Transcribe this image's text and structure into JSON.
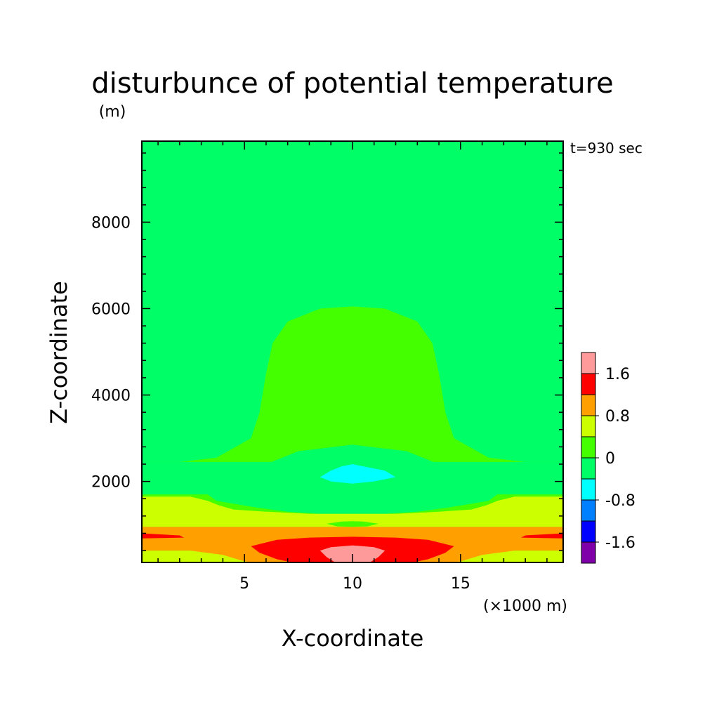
{
  "chart_data": {
    "type": "heatmap",
    "title": "disturbunce of potential temperature",
    "units_label": "(m)",
    "time_label": "t=930 sec",
    "xlabel": "X-coordinate",
    "x_unit_label": "(×1000 m)",
    "ylabel": "Z-coordinate",
    "xlim": [
      0.25,
      19.75
    ],
    "ylim": [
      125,
      9875
    ],
    "x_ticks": [
      5,
      10,
      15
    ],
    "x_tick_labels": [
      "5",
      "10",
      "15"
    ],
    "y_ticks": [
      2000,
      4000,
      6000,
      8000
    ],
    "y_tick_labels": [
      "2000",
      "4000",
      "6000",
      "8000"
    ],
    "colorbar": {
      "levels": [
        -2.0,
        -1.6,
        -1.2,
        -0.8,
        -0.4,
        0,
        0.4,
        0.8,
        1.2,
        1.6,
        2.0
      ],
      "colors": [
        "#7f00a8",
        "#0000ff",
        "#0080ff",
        "#00ffff",
        "#00ff66",
        "#44ff00",
        "#ccff00",
        "#ffa000",
        "#ff0000",
        "#ff9a9a"
      ],
      "tick_labels": [
        "-1.6",
        "-0.8",
        "0",
        "0.8",
        "1.6"
      ],
      "tick_values": [
        -1.6,
        -0.8,
        0,
        0.8,
        1.6
      ]
    },
    "regions": [
      {
        "level": "0 to 0.4",
        "color": "#44ff00",
        "polygon": [
          [
            0.25,
            2450
          ],
          [
            2.0,
            2450
          ],
          [
            3.7,
            2550
          ],
          [
            5.3,
            3000
          ],
          [
            5.7,
            3600
          ],
          [
            6.0,
            4500
          ],
          [
            6.3,
            5200
          ],
          [
            7.0,
            5700
          ],
          [
            8.5,
            6000
          ],
          [
            10,
            6050
          ],
          [
            11.5,
            6000
          ],
          [
            13,
            5700
          ],
          [
            13.7,
            5200
          ],
          [
            14,
            4500
          ],
          [
            14.3,
            3600
          ],
          [
            14.7,
            3000
          ],
          [
            16.3,
            2550
          ],
          [
            18,
            2450
          ],
          [
            19.75,
            2450
          ],
          [
            19.75,
            125
          ],
          [
            0.25,
            125
          ]
        ]
      },
      {
        "level": "-0.4 to 0",
        "color": "#00ff66",
        "polygon": [
          [
            0.25,
            2450
          ],
          [
            19.75,
            2450
          ],
          [
            19.75,
            1700
          ],
          [
            16.7,
            1700
          ],
          [
            16.3,
            1550
          ],
          [
            14.5,
            1400
          ],
          [
            13,
            1300
          ],
          [
            11.5,
            1250
          ],
          [
            10,
            1250
          ],
          [
            8.5,
            1250
          ],
          [
            7,
            1300
          ],
          [
            5.5,
            1400
          ],
          [
            3.7,
            1550
          ],
          [
            3.3,
            1700
          ],
          [
            0.25,
            1700
          ]
        ]
      },
      {
        "level": "-0.4 to 0",
        "color": "#00ff66",
        "polygon": [
          [
            5.7,
            2050
          ],
          [
            5.8,
            1750
          ],
          [
            6.7,
            1650
          ],
          [
            8.5,
            1550
          ],
          [
            10,
            1500
          ],
          [
            11.5,
            1550
          ],
          [
            13.3,
            1650
          ],
          [
            14.2,
            1750
          ],
          [
            14.3,
            2050
          ],
          [
            14.5,
            2300
          ],
          [
            12.5,
            2700
          ],
          [
            10,
            2850
          ],
          [
            7.5,
            2700
          ],
          [
            5.5,
            2300
          ]
        ]
      },
      {
        "level": "-0.8 to -0.4",
        "color": "#00ffff",
        "polygon": [
          [
            8.5,
            2100
          ],
          [
            9.0,
            2250
          ],
          [
            9.5,
            2350
          ],
          [
            10,
            2400
          ],
          [
            10.5,
            2350
          ],
          [
            11.5,
            2250
          ],
          [
            12,
            2100
          ],
          [
            11,
            2000
          ],
          [
            10,
            1950
          ],
          [
            9,
            2000
          ]
        ]
      },
      {
        "level": "0.4 to 0.8",
        "color": "#ccff00",
        "polygon": [
          [
            0.25,
            1650
          ],
          [
            2.5,
            1650
          ],
          [
            3.3,
            1550
          ],
          [
            3.8,
            1450
          ],
          [
            4.5,
            1350
          ],
          [
            6,
            1300
          ],
          [
            8,
            1250
          ],
          [
            10,
            1250
          ],
          [
            12,
            1250
          ],
          [
            14,
            1300
          ],
          [
            15.5,
            1350
          ],
          [
            16.2,
            1450
          ],
          [
            16.7,
            1550
          ],
          [
            17.5,
            1650
          ],
          [
            19.75,
            1650
          ],
          [
            19.75,
            950
          ],
          [
            0.25,
            950
          ]
        ]
      },
      {
        "level": "0.4 to 0.8",
        "color": "#ccff00",
        "polygon": [
          [
            0.25,
            125
          ],
          [
            19.75,
            125
          ],
          [
            19.75,
            400
          ],
          [
            0.25,
            400
          ]
        ]
      },
      {
        "level": "0.8 to 1.2",
        "color": "#ffa000",
        "polygon": [
          [
            0.25,
            950
          ],
          [
            19.75,
            950
          ],
          [
            19.75,
            400
          ],
          [
            17.5,
            400
          ],
          [
            16,
            300
          ],
          [
            15,
            150
          ],
          [
            14.5,
            125
          ],
          [
            5.5,
            125
          ],
          [
            5,
            150
          ],
          [
            4,
            300
          ],
          [
            2.5,
            400
          ],
          [
            0.25,
            400
          ]
        ]
      },
      {
        "level": "1.2 to 1.6",
        "color": "#ff0000",
        "polygon": [
          [
            5.3,
            500
          ],
          [
            6.5,
            650
          ],
          [
            8,
            700
          ],
          [
            10,
            720
          ],
          [
            12,
            700
          ],
          [
            13.5,
            650
          ],
          [
            14.7,
            500
          ],
          [
            14.3,
            350
          ],
          [
            13.5,
            200
          ],
          [
            12.8,
            125
          ],
          [
            7.2,
            125
          ],
          [
            6.5,
            200
          ],
          [
            5.7,
            350
          ]
        ]
      },
      {
        "level": "1.2 to 1.6",
        "color": "#ff0000",
        "polygon": [
          [
            0.25,
            800
          ],
          [
            2,
            750
          ],
          [
            2.2,
            700
          ],
          [
            0.25,
            680
          ]
        ]
      },
      {
        "level": "1.2 to 1.6",
        "color": "#ff0000",
        "polygon": [
          [
            19.75,
            800
          ],
          [
            18,
            750
          ],
          [
            17.8,
            700
          ],
          [
            19.75,
            680
          ]
        ]
      },
      {
        "level": "1.6 to 2.0",
        "color": "#ff9a9a",
        "polygon": [
          [
            8.5,
            400
          ],
          [
            9,
            480
          ],
          [
            10,
            520
          ],
          [
            11,
            480
          ],
          [
            11.5,
            400
          ],
          [
            11.2,
            250
          ],
          [
            10.8,
            125
          ],
          [
            9.2,
            125
          ],
          [
            8.8,
            250
          ]
        ]
      },
      {
        "level": "0 to 0.4",
        "color": "#44ff00",
        "polygon": [
          [
            8.8,
            1020
          ],
          [
            9.5,
            1070
          ],
          [
            10,
            1080
          ],
          [
            10.5,
            1070
          ],
          [
            11.2,
            1020
          ],
          [
            10.7,
            960
          ],
          [
            10,
            950
          ],
          [
            9.3,
            960
          ]
        ]
      }
    ]
  }
}
